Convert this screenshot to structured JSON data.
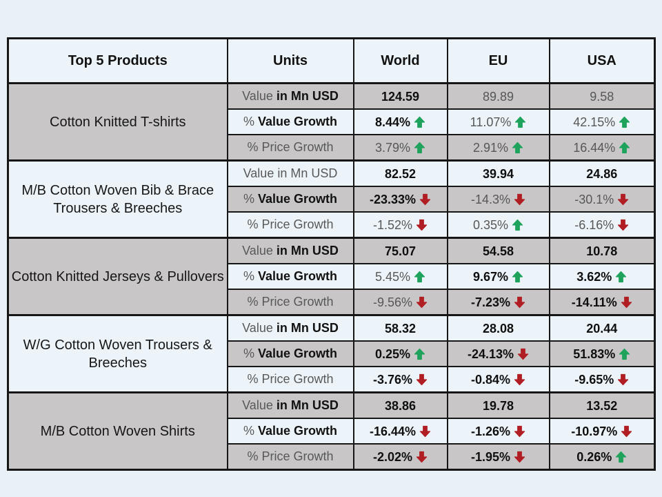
{
  "colors": {
    "page_background": "#e9f0f6",
    "light_cell": "#edf4f9",
    "gray_cell": "#c8c6c6",
    "green_arrow": "#1fa35c",
    "red_arrow": "#b01e24",
    "muted_text": "#575757",
    "strong_text": "#0f0f0f",
    "border": "#161616"
  },
  "table": {
    "columns": [
      "Top 5 Products",
      "Units",
      "World",
      "EU",
      "USA"
    ],
    "products": [
      {
        "name": "Cotton Knitted  T-shirts",
        "shade": "gray",
        "rows": [
          {
            "label_pre": "Value ",
            "label_main": "in Mn USD",
            "shade": "gray",
            "cells": [
              {
                "text": "124.59",
                "bold": true
              },
              {
                "text": "89.89",
                "bold": false
              },
              {
                "text": "9.58",
                "bold": false
              }
            ]
          },
          {
            "label_pre": "% ",
            "label_main": "Value Growth",
            "shade": "light",
            "cells": [
              {
                "text": "8.44%",
                "bold": true,
                "arrow": "up"
              },
              {
                "text": "11.07%",
                "bold": false,
                "arrow": "up"
              },
              {
                "text": "42.15%",
                "bold": false,
                "arrow": "up"
              }
            ]
          },
          {
            "label_pre": "% Price Growth",
            "label_main": "",
            "shade": "gray",
            "cells": [
              {
                "text": "3.79%",
                "bold": false,
                "arrow": "up"
              },
              {
                "text": "2.91%",
                "bold": false,
                "arrow": "up"
              },
              {
                "text": "16.44%",
                "bold": false,
                "arrow": "up"
              }
            ]
          }
        ]
      },
      {
        "name": "M/B Cotton Woven Bib & Brace Trousers & Breeches",
        "shade": "light",
        "rows": [
          {
            "label_pre": "Value in Mn USD",
            "label_main": "",
            "shade": "light",
            "cells": [
              {
                "text": "82.52",
                "bold": true
              },
              {
                "text": "39.94",
                "bold": true
              },
              {
                "text": "24.86",
                "bold": true
              }
            ]
          },
          {
            "label_pre": "% ",
            "label_main": "Value Growth",
            "shade": "gray",
            "cells": [
              {
                "text": "-23.33%",
                "bold": true,
                "arrow": "down"
              },
              {
                "text": "-14.3%",
                "bold": false,
                "arrow": "down"
              },
              {
                "text": "-30.1%",
                "bold": false,
                "arrow": "down"
              }
            ]
          },
          {
            "label_pre": "% Price Growth",
            "label_main": "",
            "shade": "light",
            "cells": [
              {
                "text": "-1.52%",
                "bold": false,
                "arrow": "down"
              },
              {
                "text": "0.35%",
                "bold": false,
                "arrow": "up"
              },
              {
                "text": "-6.16%",
                "bold": false,
                "arrow": "down"
              }
            ]
          }
        ]
      },
      {
        "name": "Cotton Knitted  Jerseys & Pullovers",
        "shade": "gray",
        "rows": [
          {
            "label_pre": "Value ",
            "label_main": "in Mn USD",
            "shade": "gray",
            "cells": [
              {
                "text": "75.07",
                "bold": true
              },
              {
                "text": "54.58",
                "bold": true
              },
              {
                "text": "10.78",
                "bold": true
              }
            ]
          },
          {
            "label_pre": "% ",
            "label_main": "Value Growth",
            "shade": "light",
            "cells": [
              {
                "text": "5.45%",
                "bold": false,
                "arrow": "up"
              },
              {
                "text": "9.67%",
                "bold": true,
                "arrow": "up"
              },
              {
                "text": "3.62%",
                "bold": true,
                "arrow": "up"
              }
            ]
          },
          {
            "label_pre": "% Price Growth",
            "label_main": "",
            "shade": "gray",
            "cells": [
              {
                "text": "-9.56%",
                "bold": false,
                "arrow": "down"
              },
              {
                "text": "-7.23%",
                "bold": true,
                "arrow": "down"
              },
              {
                "text": "-14.11%",
                "bold": true,
                "arrow": "down"
              }
            ]
          }
        ]
      },
      {
        "name": "W/G Cotton Woven  Trousers & Breeches",
        "shade": "light",
        "rows": [
          {
            "label_pre": "Value ",
            "label_main": "in Mn USD",
            "shade": "light",
            "cells": [
              {
                "text": "58.32",
                "bold": true
              },
              {
                "text": "28.08",
                "bold": true
              },
              {
                "text": "20.44",
                "bold": true
              }
            ]
          },
          {
            "label_pre": "% ",
            "label_main": "Value Growth",
            "shade": "gray",
            "cells": [
              {
                "text": "0.25%",
                "bold": true,
                "arrow": "up"
              },
              {
                "text": "-24.13%",
                "bold": true,
                "arrow": "down"
              },
              {
                "text": "51.83%",
                "bold": true,
                "arrow": "up"
              }
            ]
          },
          {
            "label_pre": "% Price Growth",
            "label_main": "",
            "shade": "light",
            "cells": [
              {
                "text": "-3.76%",
                "bold": true,
                "arrow": "down"
              },
              {
                "text": "-0.84%",
                "bold": true,
                "arrow": "down"
              },
              {
                "text": "-9.65%",
                "bold": true,
                "arrow": "down"
              }
            ]
          }
        ]
      },
      {
        "name": "M/B Cotton Woven  Shirts",
        "shade": "gray",
        "rows": [
          {
            "label_pre": "Value ",
            "label_main": "in Mn USD",
            "shade": "gray",
            "cells": [
              {
                "text": "38.86",
                "bold": true
              },
              {
                "text": "19.78",
                "bold": true
              },
              {
                "text": "13.52",
                "bold": true
              }
            ]
          },
          {
            "label_pre": "% ",
            "label_main": "Value Growth",
            "shade": "light",
            "cells": [
              {
                "text": "-16.44%",
                "bold": true,
                "arrow": "down"
              },
              {
                "text": "-1.26%",
                "bold": true,
                "arrow": "down"
              },
              {
                "text": "-10.97%",
                "bold": true,
                "arrow": "down"
              }
            ]
          },
          {
            "label_pre": "% Price Growth",
            "label_main": "",
            "shade": "gray",
            "cells": [
              {
                "text": "-2.02%",
                "bold": true,
                "arrow": "down"
              },
              {
                "text": "-1.95%",
                "bold": true,
                "arrow": "down"
              },
              {
                "text": "0.26%",
                "bold": true,
                "arrow": "up"
              }
            ]
          }
        ]
      }
    ]
  },
  "chart_data": {
    "type": "table",
    "columns": [
      "Top 5 Products",
      "Units",
      "World",
      "EU",
      "USA"
    ],
    "rows": [
      [
        "Cotton Knitted T-shirts",
        "Value in Mn USD",
        "124.59",
        "89.89",
        "9.58"
      ],
      [
        "Cotton Knitted T-shirts",
        "% Value Growth",
        "8.44% ↑",
        "11.07% ↑",
        "42.15% ↑"
      ],
      [
        "Cotton Knitted T-shirts",
        "% Price Growth",
        "3.79% ↑",
        "2.91% ↑",
        "16.44% ↑"
      ],
      [
        "M/B Cotton Woven Bib & Brace Trousers & Breeches",
        "Value in Mn USD",
        "82.52",
        "39.94",
        "24.86"
      ],
      [
        "M/B Cotton Woven Bib & Brace Trousers & Breeches",
        "% Value Growth",
        "-23.33% ↓",
        "-14.3% ↓",
        "-30.1% ↓"
      ],
      [
        "M/B Cotton Woven Bib & Brace Trousers & Breeches",
        "% Price Growth",
        "-1.52% ↓",
        "0.35% ↑",
        "-6.16% ↓"
      ],
      [
        "Cotton Knitted Jerseys & Pullovers",
        "Value in Mn USD",
        "75.07",
        "54.58",
        "10.78"
      ],
      [
        "Cotton Knitted Jerseys & Pullovers",
        "% Value Growth",
        "5.45% ↑",
        "9.67% ↑",
        "3.62% ↑"
      ],
      [
        "Cotton Knitted Jerseys & Pullovers",
        "% Price Growth",
        "-9.56% ↓",
        "-7.23% ↓",
        "-14.11% ↓"
      ],
      [
        "W/G Cotton Woven Trousers & Breeches",
        "Value in Mn USD",
        "58.32",
        "28.08",
        "20.44"
      ],
      [
        "W/G Cotton Woven Trousers & Breeches",
        "% Value Growth",
        "0.25% ↑",
        "-24.13% ↓",
        "51.83% ↑"
      ],
      [
        "W/G Cotton Woven Trousers & Breeches",
        "% Price Growth",
        "-3.76% ↓",
        "-0.84% ↓",
        "-9.65% ↓"
      ],
      [
        "M/B Cotton Woven Shirts",
        "Value in Mn USD",
        "38.86",
        "19.78",
        "13.52"
      ],
      [
        "M/B Cotton Woven Shirts",
        "% Value Growth",
        "-16.44% ↓",
        "-1.26% ↓",
        "-10.97% ↓"
      ],
      [
        "M/B Cotton Woven Shirts",
        "% Price Growth",
        "-2.02% ↓",
        "-1.95% ↓",
        "0.26% ↑"
      ]
    ]
  }
}
